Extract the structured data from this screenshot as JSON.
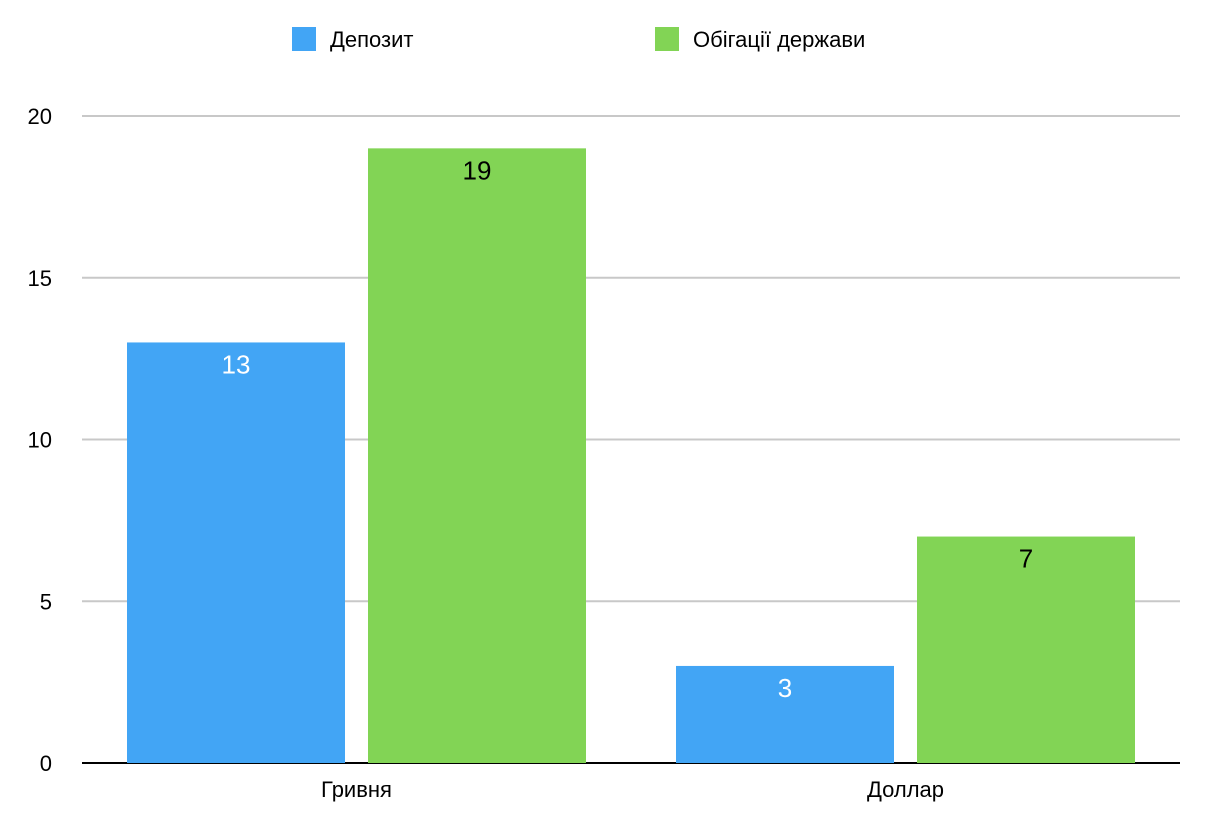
{
  "chart_data": {
    "type": "bar",
    "categories": [
      "Гривня",
      "Доллар"
    ],
    "series": [
      {
        "name": "Депозит",
        "values": [
          13,
          3
        ],
        "color": "#42a5f5",
        "label_color": "#ffffff"
      },
      {
        "name": "Обігації держави",
        "values": [
          19,
          7
        ],
        "color": "#82d455",
        "label_color": "#000000"
      }
    ],
    "title": "",
    "xlabel": "",
    "ylabel": "",
    "ylim": [
      0,
      20
    ],
    "yticks": [
      "0",
      "5",
      "10",
      "15",
      "20"
    ],
    "grid": true,
    "legend_position": "top",
    "gridline_color": "#c8c8c8",
    "axis_color": "#000000"
  }
}
